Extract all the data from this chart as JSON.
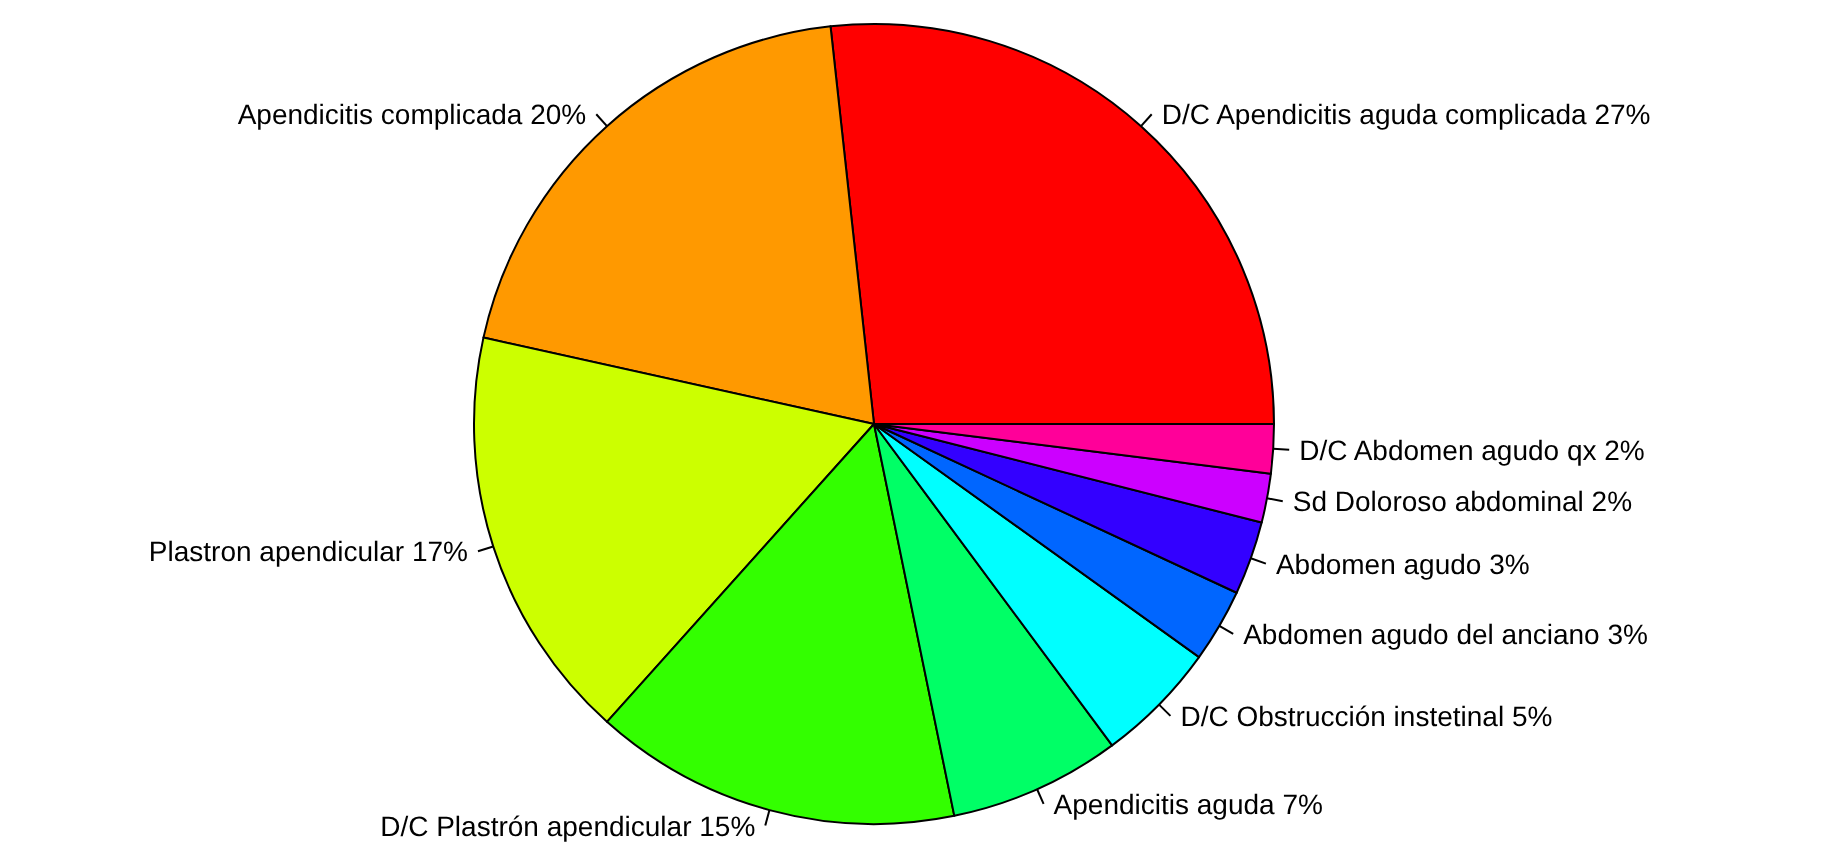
{
  "chart_data": {
    "type": "pie",
    "categories": [
      "D/C Apendicitis aguda complicada",
      "Apendicitis complicada",
      "Plastron apendicular",
      "D/C Plastrón apendicular",
      "Apendicitis aguda",
      "D/C Obstrucción instetinal",
      "Abdomen agudo del anciano",
      "Abdomen agudo",
      "Sd Doloroso abdominal",
      "D/C Abdomen agudo qx"
    ],
    "values": [
      27,
      20,
      17,
      15,
      7,
      5,
      3,
      3,
      2,
      2
    ],
    "colors": [
      "#ff0000",
      "#ff9900",
      "#ccff00",
      "#33ff00",
      "#00ff66",
      "#00ffff",
      "#0066ff",
      "#3300ff",
      "#cc00ff",
      "#ff0099"
    ],
    "value_labels": [
      "27%",
      "20%",
      "17%",
      "15%",
      "7%",
      "5%",
      "3%",
      "3%",
      "2%",
      "2%"
    ]
  }
}
